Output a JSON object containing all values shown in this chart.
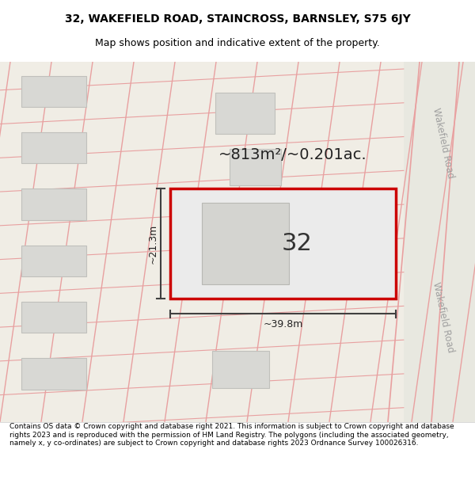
{
  "title_line1": "32, WAKEFIELD ROAD, STAINCROSS, BARNSLEY, S75 6JY",
  "title_line2": "Map shows position and indicative extent of the property.",
  "footer_text": "Contains OS data © Crown copyright and database right 2021. This information is subject to Crown copyright and database rights 2023 and is reproduced with the permission of HM Land Registry. The polygons (including the associated geometry, namely x, y co-ordinates) are subject to Crown copyright and database rights 2023 Ordnance Survey 100026316.",
  "map_bg": "#f0ede5",
  "plot_border": "#cc0000",
  "road_line_color": "#e8a0a0",
  "dim_line_color": "#404040",
  "road_label_color": "#a0a0a0",
  "area_text": "~813m²/~0.201ac.",
  "width_label": "~39.8m",
  "height_label": "~21.3m",
  "number_label": "32"
}
